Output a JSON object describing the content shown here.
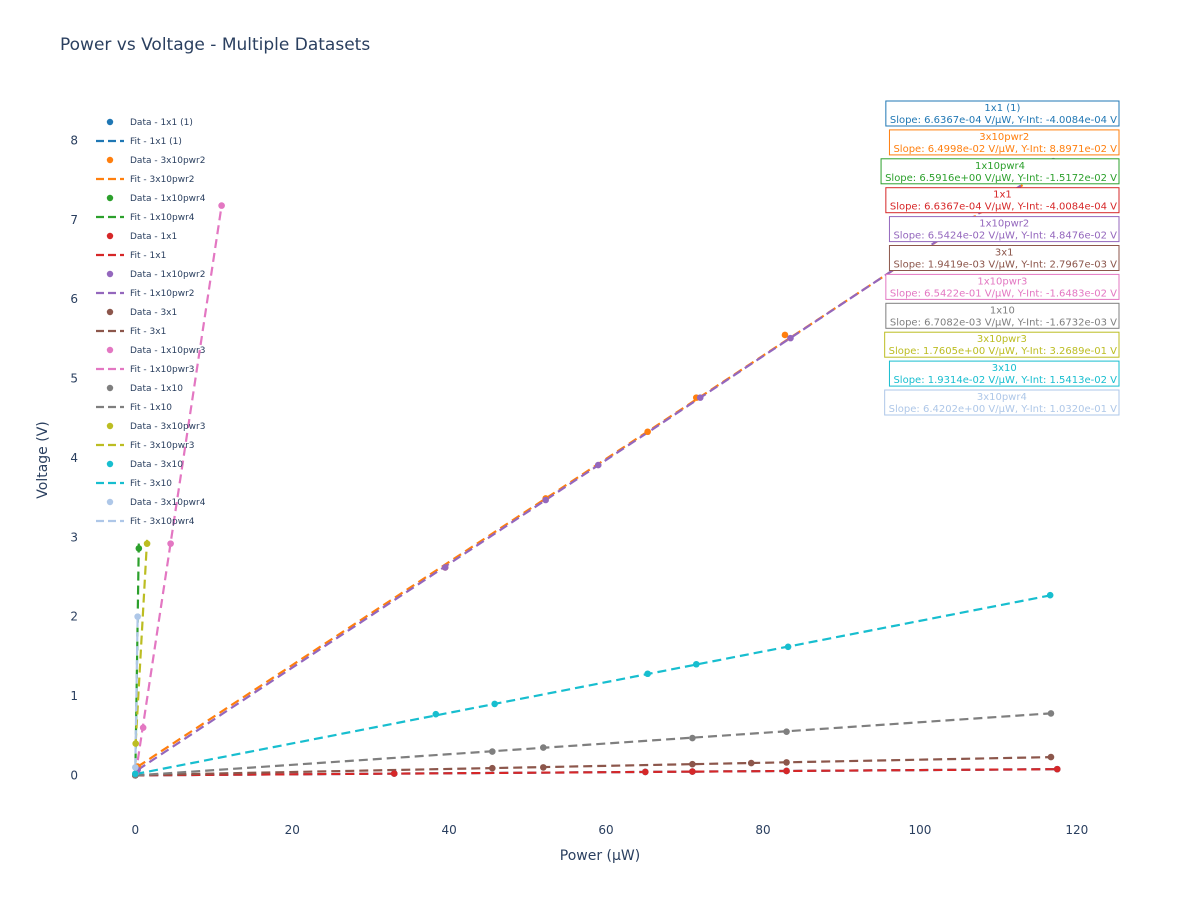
{
  "chart_data": {
    "type": "scatter",
    "title": "Power vs Voltage - Multiple Datasets",
    "xlabel": "Power (μW)",
    "ylabel": "Voltage (V)",
    "xlim": [
      -4.5,
      125.5
    ],
    "ylim": [
      -0.5,
      8.7
    ],
    "xticks": [
      0,
      20,
      40,
      60,
      80,
      100,
      120
    ],
    "yticks": [
      0,
      1,
      2,
      3,
      4,
      5,
      6,
      7,
      8
    ],
    "grid": false,
    "legend_position": "top-left",
    "series": [
      {
        "name": "1x1 (1)",
        "color": "#1f77b4",
        "x": [
          0,
          33,
          65,
          71,
          83,
          117.5
        ],
        "y": [
          0,
          0.022,
          0.043,
          0.047,
          0.055,
          0.078
        ],
        "slope": 0.00066367,
        "intercept": -0.00040084
      },
      {
        "name": "3x10pwr2",
        "color": "#ff7f0e",
        "x": [
          0.3,
          39.5,
          52.3,
          65.3,
          71.5,
          82.8,
          116.7
        ],
        "y": [
          0.11,
          2.62,
          3.49,
          4.33,
          4.76,
          5.55,
          7.6
        ],
        "slope": 0.064998,
        "intercept": 0.088971
      },
      {
        "name": "1x10pwr4",
        "color": "#2ca02c",
        "x": [
          0.0,
          0.45
        ],
        "y": [
          0.0,
          2.86
        ],
        "slope": 6.5916,
        "intercept": -0.015172
      },
      {
        "name": "1x1",
        "color": "#d62728",
        "x": [
          0,
          33,
          65,
          71,
          83,
          117.5
        ],
        "y": [
          0,
          0.022,
          0.043,
          0.047,
          0.055,
          0.078
        ],
        "slope": 0.00066367,
        "intercept": -0.00040084
      },
      {
        "name": "1x10pwr2",
        "color": "#9467bd",
        "x": [
          0.3,
          39.5,
          52.3,
          59,
          72,
          83.5,
          117
        ],
        "y": [
          0.07,
          2.62,
          3.47,
          3.91,
          4.76,
          5.51,
          7.74
        ],
        "slope": 0.065424,
        "intercept": 0.048476
      },
      {
        "name": "3x1",
        "color": "#8c564b",
        "x": [
          0,
          45.5,
          52,
          71,
          78.5,
          83,
          116.7
        ],
        "y": [
          0,
          0.09,
          0.1,
          0.14,
          0.155,
          0.163,
          0.23
        ],
        "slope": 0.0019419,
        "intercept": 0.0027967
      },
      {
        "name": "1x10pwr3",
        "color": "#e377c2",
        "x": [
          0.05,
          1.0,
          4.5,
          11
        ],
        "y": [
          0.02,
          0.6,
          2.92,
          7.18
        ],
        "slope": 0.65422,
        "intercept": -0.016483
      },
      {
        "name": "1x10",
        "color": "#7f7f7f",
        "x": [
          0,
          45.5,
          52,
          71,
          83,
          116.7
        ],
        "y": [
          0,
          0.3,
          0.35,
          0.47,
          0.55,
          0.78
        ],
        "slope": 0.0067082,
        "intercept": -0.0016732
      },
      {
        "name": "3x10pwr3",
        "color": "#bcbd22",
        "x": [
          0.05,
          1.5
        ],
        "y": [
          0.4,
          2.92
        ],
        "slope": 1.7605,
        "intercept": 0.32689
      },
      {
        "name": "3x10",
        "color": "#17becf",
        "x": [
          0,
          38.3,
          45.8,
          65.3,
          71.5,
          83.2,
          116.6
        ],
        "y": [
          0.02,
          0.77,
          0.9,
          1.28,
          1.4,
          1.62,
          2.27
        ],
        "slope": 0.019314,
        "intercept": 0.015413
      },
      {
        "name": "3x10pwr4",
        "color": "#aec7e8",
        "x": [
          0,
          0.3
        ],
        "y": [
          0.1,
          2.0
        ],
        "slope": 6.4202,
        "intercept": 0.1032
      }
    ],
    "legend": [
      {
        "label": "Data - 1x1 (1)",
        "color": "#1f77b4",
        "kind": "marker"
      },
      {
        "label": "Fit - 1x1 (1)",
        "color": "#1f77b4",
        "kind": "line"
      },
      {
        "label": "Data - 3x10pwr2",
        "color": "#ff7f0e",
        "kind": "marker"
      },
      {
        "label": "Fit - 3x10pwr2",
        "color": "#ff7f0e",
        "kind": "line"
      },
      {
        "label": "Data - 1x10pwr4",
        "color": "#2ca02c",
        "kind": "marker"
      },
      {
        "label": "Fit - 1x10pwr4",
        "color": "#2ca02c",
        "kind": "line"
      },
      {
        "label": "Data - 1x1",
        "color": "#d62728",
        "kind": "marker"
      },
      {
        "label": "Fit - 1x1",
        "color": "#d62728",
        "kind": "line"
      },
      {
        "label": "Data - 1x10pwr2",
        "color": "#9467bd",
        "kind": "marker"
      },
      {
        "label": "Fit - 1x10pwr2",
        "color": "#9467bd",
        "kind": "line"
      },
      {
        "label": "Data - 3x1",
        "color": "#8c564b",
        "kind": "marker"
      },
      {
        "label": "Fit - 3x1",
        "color": "#8c564b",
        "kind": "line"
      },
      {
        "label": "Data - 1x10pwr3",
        "color": "#e377c2",
        "kind": "marker"
      },
      {
        "label": "Fit - 1x10pwr3",
        "color": "#e377c2",
        "kind": "line"
      },
      {
        "label": "Data - 1x10",
        "color": "#7f7f7f",
        "kind": "marker"
      },
      {
        "label": "Fit - 1x10",
        "color": "#7f7f7f",
        "kind": "line"
      },
      {
        "label": "Data - 3x10pwr3",
        "color": "#bcbd22",
        "kind": "marker"
      },
      {
        "label": "Fit - 3x10pwr3",
        "color": "#bcbd22",
        "kind": "line"
      },
      {
        "label": "Data - 3x10",
        "color": "#17becf",
        "kind": "marker"
      },
      {
        "label": "Fit - 3x10",
        "color": "#17becf",
        "kind": "line"
      },
      {
        "label": "Data - 3x10pwr4",
        "color": "#aec7e8",
        "kind": "marker"
      },
      {
        "label": "Fit - 3x10pwr4",
        "color": "#aec7e8",
        "kind": "line"
      }
    ],
    "annotations": [
      {
        "name": "1x1 (1)",
        "text": "Slope: 6.6367e-04 V/μW, Y-Int: -4.0084e-04 V",
        "color": "#1f77b4"
      },
      {
        "name": "3x10pwr2",
        "text": "Slope: 6.4998e-02 V/μW, Y-Int: 8.8971e-02 V",
        "color": "#ff7f0e"
      },
      {
        "name": "1x10pwr4",
        "text": "Slope: 6.5916e+00 V/μW, Y-Int: -1.5172e-02 V",
        "color": "#2ca02c"
      },
      {
        "name": "1x1",
        "text": "Slope: 6.6367e-04 V/μW, Y-Int: -4.0084e-04 V",
        "color": "#d62728"
      },
      {
        "name": "1x10pwr2",
        "text": "Slope: 6.5424e-02 V/μW, Y-Int: 4.8476e-02 V",
        "color": "#9467bd"
      },
      {
        "name": "3x1",
        "text": "Slope: 1.9419e-03 V/μW, Y-Int: 2.7967e-03 V",
        "color": "#8c564b"
      },
      {
        "name": "1x10pwr3",
        "text": "Slope: 6.5422e-01 V/μW, Y-Int: -1.6483e-02 V",
        "color": "#e377c2"
      },
      {
        "name": "1x10",
        "text": "Slope: 6.7082e-03 V/μW, Y-Int: -1.6732e-03 V",
        "color": "#7f7f7f"
      },
      {
        "name": "3x10pwr3",
        "text": "Slope: 1.7605e+00 V/μW, Y-Int: 3.2689e-01 V",
        "color": "#bcbd22"
      },
      {
        "name": "3x10",
        "text": "Slope: 1.9314e-02 V/μW, Y-Int: 1.5413e-02 V",
        "color": "#17becf"
      },
      {
        "name": "3x10pwr4",
        "text": "Slope: 6.4202e+00 V/μW, Y-Int: 1.0320e-01 V",
        "color": "#aec7e8"
      }
    ]
  }
}
